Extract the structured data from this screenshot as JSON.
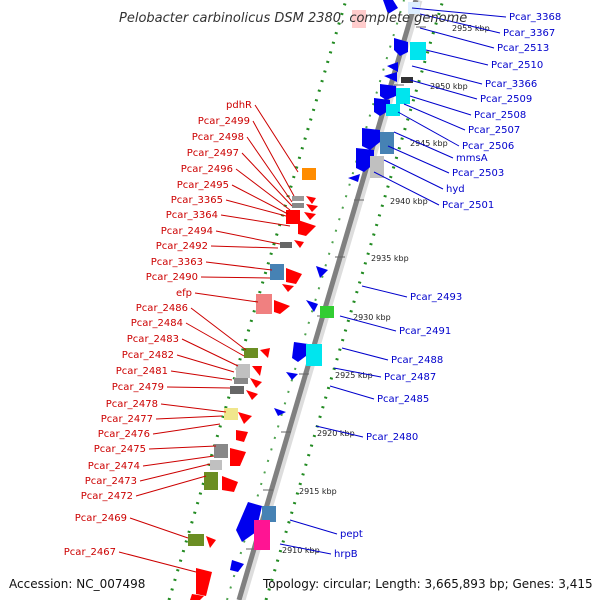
{
  "title": "Pelobacter carbinolicus DSM 2380, complete genome",
  "accession_text": "Accession: NC_007498",
  "topology_text": "Topology: circular; Length: 3,665,893 bp; Genes: 3,415",
  "colors": {
    "backbone": "#808080",
    "track_dots": "#228b22",
    "left_label": "#cc0000",
    "right_label": "#0000cc"
  },
  "ticks": [
    "2910 kbp",
    "2915 kbp",
    "2920 kbp",
    "2925 kbp",
    "2930 kbp",
    "2935 kbp",
    "2940 kbp",
    "2945 kbp",
    "2950 kbp",
    "2955 kbp"
  ],
  "left_labels": [
    "pdhR",
    "Pcar_2499",
    "Pcar_2498",
    "Pcar_2497",
    "Pcar_2496",
    "Pcar_2495",
    "Pcar_3365",
    "Pcar_3364",
    "Pcar_2494",
    "Pcar_2492",
    "Pcar_3363",
    "Pcar_2490",
    "efp",
    "Pcar_2486",
    "Pcar_2484",
    "Pcar_2483",
    "Pcar_2482",
    "Pcar_2481",
    "Pcar_2479",
    "Pcar_2478",
    "Pcar_2477",
    "Pcar_2476",
    "Pcar_2475",
    "Pcar_2474",
    "Pcar_2473",
    "Pcar_2472",
    "Pcar_2469",
    "Pcar_2467"
  ],
  "right_labels": [
    "Pcar_3368",
    "Pcar_3367",
    "Pcar_2513",
    "Pcar_2510",
    "Pcar_3366",
    "Pcar_2509",
    "Pcar_2508",
    "Pcar_2507",
    "Pcar_2506",
    "mmsA",
    "Pcar_2503",
    "hyd",
    "Pcar_2501",
    "Pcar_2493",
    "Pcar_2491",
    "Pcar_2488",
    "Pcar_2487",
    "Pcar_2485",
    "Pcar_2480",
    "pept",
    "hrpB"
  ]
}
